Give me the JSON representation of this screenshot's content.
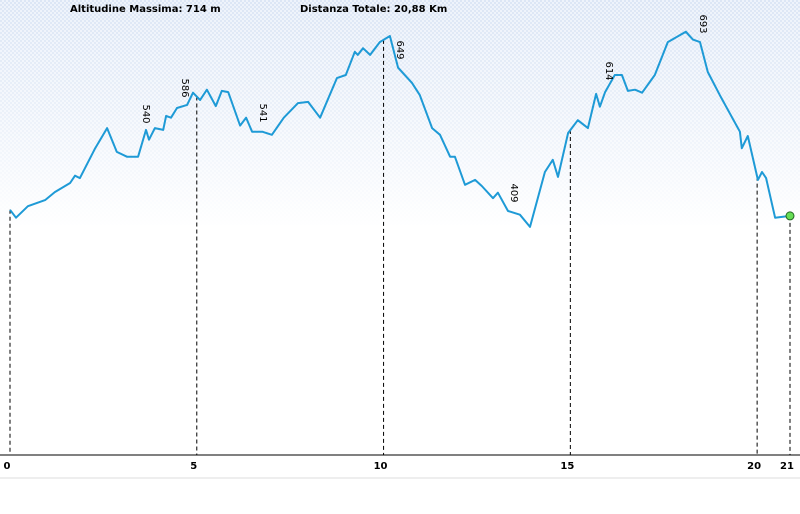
{
  "chart_data": {
    "type": "line",
    "title": "Altitudine Massima: 714 m",
    "subtitle": "Distanza Totale: 20,88 Km",
    "x": [
      0,
      0.16,
      0.48,
      0.94,
      1.2,
      1.61,
      1.74,
      1.87,
      2.28,
      2.6,
      2.86,
      3.13,
      3.43,
      3.64,
      3.72,
      3.88,
      4.1,
      4.18,
      4.31,
      4.47,
      4.74,
      4.9,
      5.09,
      5.27,
      5.51,
      5.67,
      5.84,
      6.16,
      6.32,
      6.48,
      6.75,
      7.01,
      7.33,
      7.71,
      7.98,
      8.3,
      8.75,
      8.99,
      9.23,
      9.31,
      9.45,
      9.64,
      9.9,
      10.17,
      10.39,
      10.76,
      10.97,
      11.3,
      11.51,
      11.78,
      11.91,
      12.18,
      12.45,
      12.63,
      12.93,
      13.06,
      13.33,
      13.65,
      13.92,
      14.32,
      14.53,
      14.67,
      14.94,
      15.2,
      15.47,
      15.69,
      15.79,
      15.93,
      16.19,
      16.38,
      16.54,
      16.73,
      16.92,
      17.26,
      17.61,
      18.09,
      18.28,
      18.47,
      18.68,
      19.0,
      19.54,
      19.59,
      19.75,
      20.02,
      20.13,
      20.24,
      20.48,
      20.88
    ],
    "series": [
      {
        "color": "#1e9ad6",
        "values": [
          402,
          389,
          408,
          418,
          431,
          446,
          458,
          454,
          503,
          536,
          497,
          489,
          489,
          533,
          517,
          536,
          533,
          556,
          553,
          569,
          574,
          594,
          582,
          599,
          572,
          597,
          595,
          540,
          553,
          530,
          530,
          525,
          553,
          577,
          579,
          553,
          618,
          623,
          661,
          656,
          667,
          656,
          677,
          687,
          635,
          610,
          590,
          536,
          525,
          489,
          489,
          443,
          451,
          441,
          421,
          430,
          400,
          394,
          374,
          464,
          484,
          456,
          528,
          549,
          536,
          592,
          571,
          595,
          623,
          623,
          597,
          599,
          594,
          623,
          677,
          694,
          681,
          677,
          628,
          590,
          530,
          503,
          523,
          451,
          464,
          454,
          389,
          392
        ]
      }
    ],
    "annotations": [
      "540",
      "586",
      "541",
      "649",
      "409",
      "614",
      "693"
    ],
    "xlim": [
      0,
      20.88
    ],
    "ylim": [
      0,
      746
    ],
    "xticks": [
      0,
      5,
      10,
      15,
      20,
      21
    ],
    "end_marker_color": "#66dd55"
  }
}
